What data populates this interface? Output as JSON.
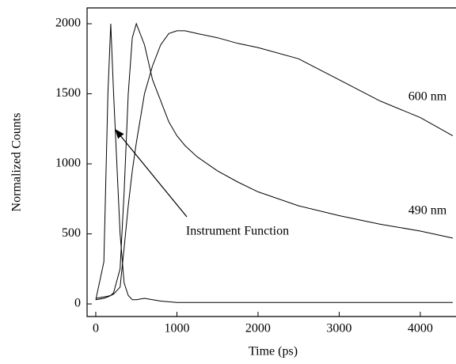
{
  "chart_data": {
    "type": "line",
    "x_label": "Time (ps)",
    "y_label": "Normalized Counts",
    "x": [
      0,
      100,
      150,
      185,
      220,
      300,
      350,
      400,
      450,
      500,
      600,
      700,
      800,
      900,
      1000,
      1100,
      1250,
      1500,
      1750,
      2000,
      2500,
      3000,
      3500,
      4000,
      4400
    ],
    "series": [
      {
        "name": "Instrument Function",
        "color": "#000000",
        "values": [
          30,
          300,
          1500,
          2000,
          1500,
          500,
          150,
          60,
          30,
          30,
          40,
          30,
          20,
          15,
          10,
          10,
          10,
          10,
          10,
          10,
          10,
          10,
          10,
          10,
          10
        ]
      },
      {
        "name": "490 nm",
        "color": "#000000",
        "values": [
          30,
          40,
          50,
          60,
          80,
          250,
          800,
          1500,
          1900,
          2000,
          1850,
          1600,
          1450,
          1300,
          1200,
          1130,
          1050,
          950,
          870,
          800,
          700,
          630,
          570,
          520,
          470
        ]
      },
      {
        "name": "600 nm",
        "color": "#000000",
        "values": [
          40,
          50,
          55,
          60,
          70,
          120,
          400,
          700,
          950,
          1150,
          1500,
          1700,
          1850,
          1930,
          1950,
          1950,
          1930,
          1900,
          1860,
          1830,
          1750,
          1600,
          1450,
          1330,
          1200
        ]
      }
    ],
    "xlim": [
      -107,
      4440
    ],
    "ylim": [
      -90,
      2113
    ],
    "xticks": [
      0,
      1000,
      2000,
      3000,
      4000
    ],
    "yticks": [
      0,
      500,
      1000,
      1500,
      2000
    ]
  }
}
